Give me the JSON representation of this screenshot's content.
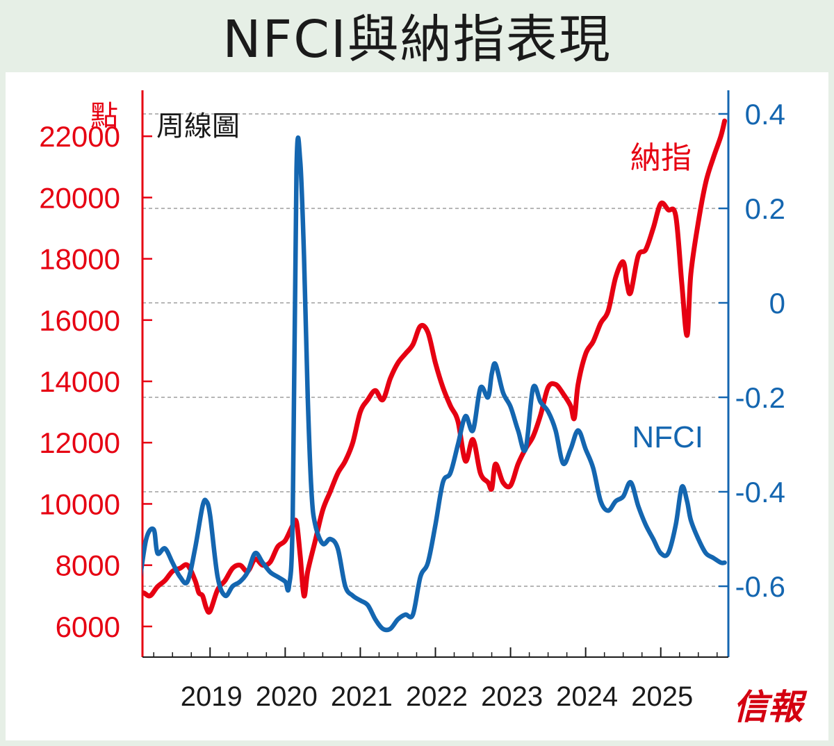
{
  "title": "NFCI與納指表現",
  "subtitle": "周線圖",
  "left_axis_unit": "點",
  "source": "信報",
  "colors": {
    "nasdaq": "#e60012",
    "nfci": "#1466b0",
    "background": "#e6efe6",
    "plot_bg": "#ffffff"
  },
  "chart_data": {
    "type": "line",
    "title": "NFCI與納指表現",
    "subtitle": "周線圖",
    "grid": "horizontal dashed",
    "x_ticks": [
      "2019",
      "2020",
      "2021",
      "2022",
      "2023",
      "2024",
      "2025"
    ],
    "x_range": [
      2018.1,
      2025.9
    ],
    "left_axis": {
      "label": "點",
      "range": [
        5000,
        23500
      ],
      "ticks": [
        "6000",
        "8000",
        "10000",
        "12000",
        "14000",
        "16000",
        "18000",
        "20000",
        "22000"
      ]
    },
    "right_axis": {
      "range": [
        -0.75,
        0.45
      ],
      "ticks": [
        "0.4",
        "0.2",
        "0",
        "-0.2",
        "-0.4",
        "-0.6"
      ]
    },
    "series": [
      {
        "name": "納指",
        "axis": "left",
        "x": [
          2018.0,
          2018.1,
          2018.2,
          2018.3,
          2018.4,
          2018.5,
          2018.6,
          2018.7,
          2018.8,
          2018.85,
          2018.9,
          2018.95,
          2019.0,
          2019.1,
          2019.2,
          2019.3,
          2019.4,
          2019.5,
          2019.6,
          2019.7,
          2019.8,
          2019.9,
          2020.0,
          2020.1,
          2020.15,
          2020.2,
          2020.25,
          2020.3,
          2020.4,
          2020.5,
          2020.6,
          2020.7,
          2020.8,
          2020.9,
          2021.0,
          2021.1,
          2021.2,
          2021.3,
          2021.4,
          2021.5,
          2021.6,
          2021.7,
          2021.8,
          2021.9,
          2022.0,
          2022.1,
          2022.2,
          2022.3,
          2022.4,
          2022.5,
          2022.6,
          2022.7,
          2022.75,
          2022.8,
          2022.9,
          2023.0,
          2023.1,
          2023.2,
          2023.3,
          2023.4,
          2023.5,
          2023.6,
          2023.7,
          2023.8,
          2023.85,
          2023.9,
          2024.0,
          2024.1,
          2024.2,
          2024.3,
          2024.4,
          2024.5,
          2024.55,
          2024.6,
          2024.7,
          2024.8,
          2024.9,
          2025.0,
          2025.1,
          2025.2,
          2025.28,
          2025.35,
          2025.4,
          2025.5,
          2025.6,
          2025.7,
          2025.8,
          2025.85
        ],
        "values": [
          6900,
          7100,
          7000,
          7300,
          7500,
          7800,
          7900,
          8000,
          7500,
          7100,
          7000,
          6600,
          6500,
          7200,
          7500,
          7900,
          8000,
          7800,
          8200,
          8000,
          8100,
          8600,
          8800,
          9300,
          9400,
          8300,
          7000,
          7800,
          8800,
          9800,
          10400,
          11000,
          11400,
          12000,
          13000,
          13400,
          13700,
          13400,
          14100,
          14600,
          14900,
          15200,
          15800,
          15600,
          14600,
          13800,
          13200,
          12700,
          11400,
          12100,
          11000,
          10700,
          10500,
          11300,
          10700,
          10600,
          11300,
          11800,
          12200,
          12900,
          13800,
          13900,
          13600,
          13200,
          12800,
          13900,
          14900,
          15300,
          15900,
          16300,
          17400,
          17900,
          17200,
          16900,
          18100,
          18300,
          19000,
          19800,
          19600,
          19400,
          17200,
          15500,
          17500,
          19200,
          20500,
          21300,
          22000,
          22500
        ]
      },
      {
        "name": "NFCI",
        "axis": "right",
        "x": [
          2018.0,
          2018.05,
          2018.15,
          2018.25,
          2018.3,
          2018.4,
          2018.5,
          2018.6,
          2018.7,
          2018.8,
          2018.9,
          2018.95,
          2019.0,
          2019.1,
          2019.2,
          2019.3,
          2019.4,
          2019.5,
          2019.6,
          2019.7,
          2019.8,
          2019.9,
          2020.0,
          2020.05,
          2020.1,
          2020.15,
          2020.2,
          2020.25,
          2020.3,
          2020.35,
          2020.4,
          2020.5,
          2020.6,
          2020.7,
          2020.8,
          2020.9,
          2021.0,
          2021.1,
          2021.2,
          2021.3,
          2021.4,
          2021.5,
          2021.6,
          2021.7,
          2021.8,
          2021.9,
          2022.0,
          2022.1,
          2022.2,
          2022.3,
          2022.4,
          2022.5,
          2022.6,
          2022.7,
          2022.75,
          2022.8,
          2022.9,
          2023.0,
          2023.1,
          2023.2,
          2023.3,
          2023.4,
          2023.5,
          2023.6,
          2023.7,
          2023.8,
          2023.9,
          2024.0,
          2024.1,
          2024.2,
          2024.3,
          2024.4,
          2024.5,
          2024.6,
          2024.7,
          2024.8,
          2024.9,
          2025.0,
          2025.1,
          2025.2,
          2025.28,
          2025.35,
          2025.4,
          2025.5,
          2025.6,
          2025.7,
          2025.8,
          2025.85
        ],
        "values": [
          -0.62,
          -0.6,
          -0.5,
          -0.48,
          -0.53,
          -0.52,
          -0.55,
          -0.58,
          -0.59,
          -0.52,
          -0.43,
          -0.42,
          -0.45,
          -0.58,
          -0.62,
          -0.6,
          -0.59,
          -0.57,
          -0.53,
          -0.55,
          -0.57,
          -0.58,
          -0.59,
          -0.6,
          -0.45,
          0.28,
          0.3,
          0.1,
          -0.2,
          -0.4,
          -0.47,
          -0.51,
          -0.5,
          -0.52,
          -0.6,
          -0.62,
          -0.63,
          -0.64,
          -0.67,
          -0.69,
          -0.69,
          -0.67,
          -0.66,
          -0.66,
          -0.58,
          -0.55,
          -0.47,
          -0.38,
          -0.36,
          -0.3,
          -0.24,
          -0.27,
          -0.18,
          -0.2,
          -0.15,
          -0.13,
          -0.19,
          -0.22,
          -0.27,
          -0.31,
          -0.18,
          -0.21,
          -0.23,
          -0.27,
          -0.34,
          -0.31,
          -0.27,
          -0.31,
          -0.35,
          -0.42,
          -0.44,
          -0.42,
          -0.41,
          -0.38,
          -0.43,
          -0.47,
          -0.5,
          -0.53,
          -0.53,
          -0.47,
          -0.39,
          -0.42,
          -0.46,
          -0.5,
          -0.53,
          -0.54,
          -0.55,
          -0.55
        ]
      }
    ],
    "annotations": [
      {
        "text": "納指",
        "series": "納指"
      },
      {
        "text": "NFCI",
        "series": "NFCI"
      }
    ]
  }
}
